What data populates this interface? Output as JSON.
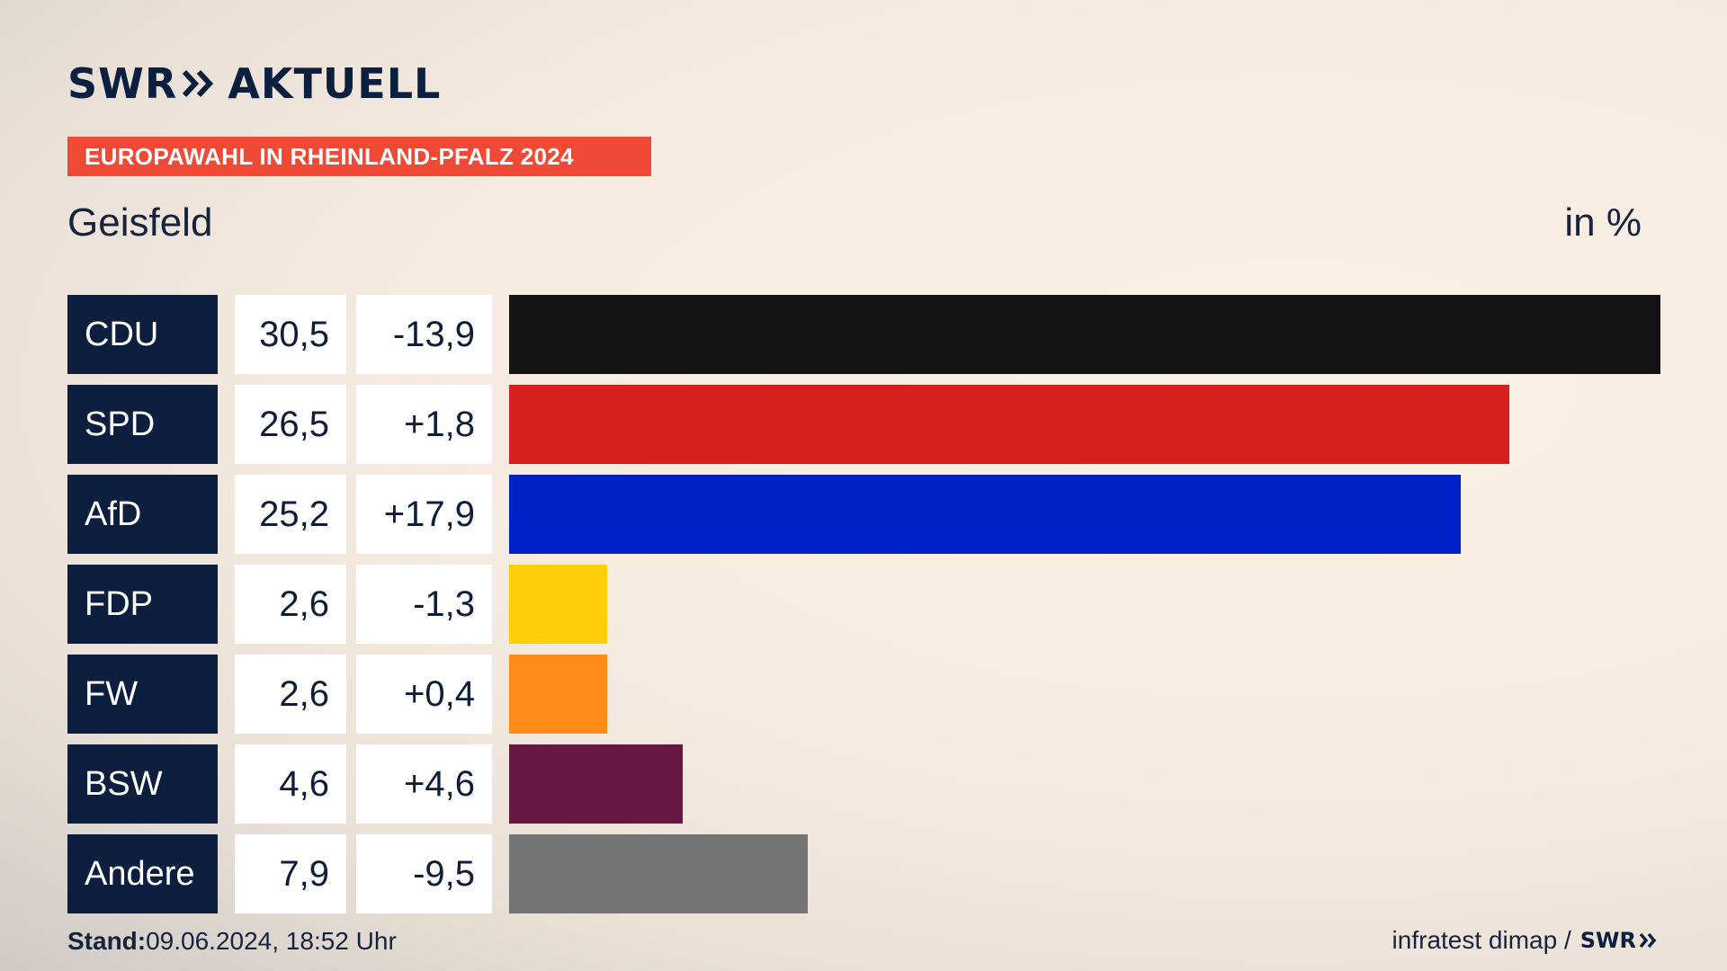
{
  "header": {
    "logo_brand": "SWR",
    "logo_product": "AKTUELL",
    "banner": "EUROPAWAHL IN RHEINLAND-PFALZ 2024",
    "location": "Geisfeld",
    "unit": "in %"
  },
  "footer": {
    "stand_label": "Stand:",
    "stand_value": "09.06.2024, 18:52 Uhr",
    "source": "infratest dimap /",
    "source_logo": "SWR"
  },
  "colors": {
    "navy": "#0d1f3f",
    "banner": "#f04a36"
  },
  "chart_data": {
    "type": "bar",
    "orientation": "horizontal",
    "categories": [
      "CDU",
      "SPD",
      "AfD",
      "FDP",
      "FW",
      "BSW",
      "Andere"
    ],
    "values": [
      30.5,
      26.5,
      25.2,
      2.6,
      2.6,
      4.6,
      7.9
    ],
    "value_labels": [
      "30,5",
      "26,5",
      "25,2",
      "2,6",
      "2,6",
      "4,6",
      "7,9"
    ],
    "changes": [
      "-13,9",
      "+1,8",
      "+17,9",
      "-1,3",
      "+0,4",
      "+4,6",
      "-9,5"
    ],
    "colors": [
      "#131313",
      "#d71f1f",
      "#0021c8",
      "#ffcd0a",
      "#ff8c1a",
      "#651840",
      "#737373"
    ],
    "title": "Geisfeld",
    "ylabel": "in %"
  }
}
